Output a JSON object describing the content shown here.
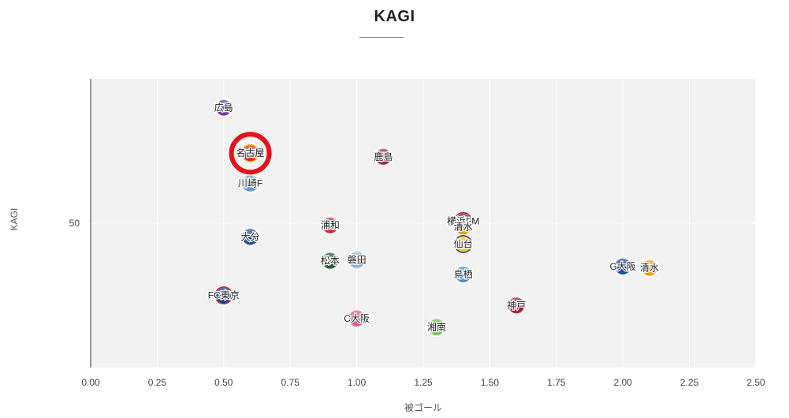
{
  "chart_data": {
    "type": "scatter",
    "title": "KAGI",
    "xlabel": "被ゴール",
    "ylabel": "KAGI",
    "xlim": [
      0,
      2.5
    ],
    "ylim": [
      30,
      70
    ],
    "x_ticks": [
      "0.00",
      "0.25",
      "0.50",
      "0.75",
      "1.00",
      "1.25",
      "1.50",
      "1.75",
      "2.00",
      "2.25",
      "2.50"
    ],
    "y_ticks": [
      {
        "value": 50,
        "label": "50"
      }
    ],
    "grid": true,
    "highlight": "名古屋",
    "points": [
      {
        "label": "広島",
        "x": 0.5,
        "y": 66.0,
        "colors": [
          "#6a3d9a",
          "#ffffff"
        ]
      },
      {
        "label": "名古屋",
        "x": 0.6,
        "y": 59.7,
        "colors": [
          "#d62728",
          "#f4b400"
        ]
      },
      {
        "label": "川崎F",
        "x": 0.6,
        "y": 55.5,
        "colors": [
          "#5b9bd5",
          "#e6e6e6"
        ]
      },
      {
        "label": "大分",
        "x": 0.6,
        "y": 48.1,
        "colors": [
          "#1f4e9c",
          "#e6e6e6"
        ]
      },
      {
        "label": "FC東京",
        "x": 0.5,
        "y": 40.0,
        "colors": [
          "#1f3f8c",
          "#d62728"
        ]
      },
      {
        "label": "浦和",
        "x": 0.9,
        "y": 49.7,
        "colors": [
          "#d62728",
          "#ffffff"
        ]
      },
      {
        "label": "松本",
        "x": 0.9,
        "y": 44.8,
        "colors": [
          "#1e5e3a",
          "#e6e6e6"
        ]
      },
      {
        "label": "磐田",
        "x": 1.0,
        "y": 44.9,
        "colors": [
          "#8fb4d9",
          "#e6e6e6"
        ]
      },
      {
        "label": "C大阪",
        "x": 1.0,
        "y": 36.8,
        "colors": [
          "#e75480",
          "#e6e6e6"
        ]
      },
      {
        "label": "鹿島",
        "x": 1.1,
        "y": 59.2,
        "colors": [
          "#b22244",
          "#e6e6e6"
        ]
      },
      {
        "label": "湘南",
        "x": 1.3,
        "y": 35.6,
        "colors": [
          "#6abf4b",
          "#e6e6e6"
        ]
      },
      {
        "label": "横浜FM",
        "x": 1.4,
        "y": 50.3,
        "colors": [
          "#1f4e9c",
          "#d62728"
        ]
      },
      {
        "label": "清水",
        "x": 1.4,
        "y": 49.5,
        "colors": [
          "#f39c12",
          "#ffffff"
        ]
      },
      {
        "label": "仙台",
        "x": 1.4,
        "y": 47.1,
        "colors": [
          "#f4c430",
          "#1f3f8c"
        ]
      },
      {
        "label": "鳥栖",
        "x": 1.4,
        "y": 42.9,
        "colors": [
          "#3a8fd9",
          "#ffffff"
        ]
      },
      {
        "label": "神戸",
        "x": 1.6,
        "y": 38.6,
        "colors": [
          "#b0173a",
          "#e6e6e6"
        ]
      },
      {
        "label": "G大阪",
        "x": 2.0,
        "y": 44.0,
        "colors": [
          "#1f4e9c",
          "#e6e6e6"
        ]
      },
      {
        "label": "清水",
        "x": 2.1,
        "y": 43.8,
        "colors": [
          "#f39c12",
          "#ffffff"
        ]
      }
    ]
  }
}
